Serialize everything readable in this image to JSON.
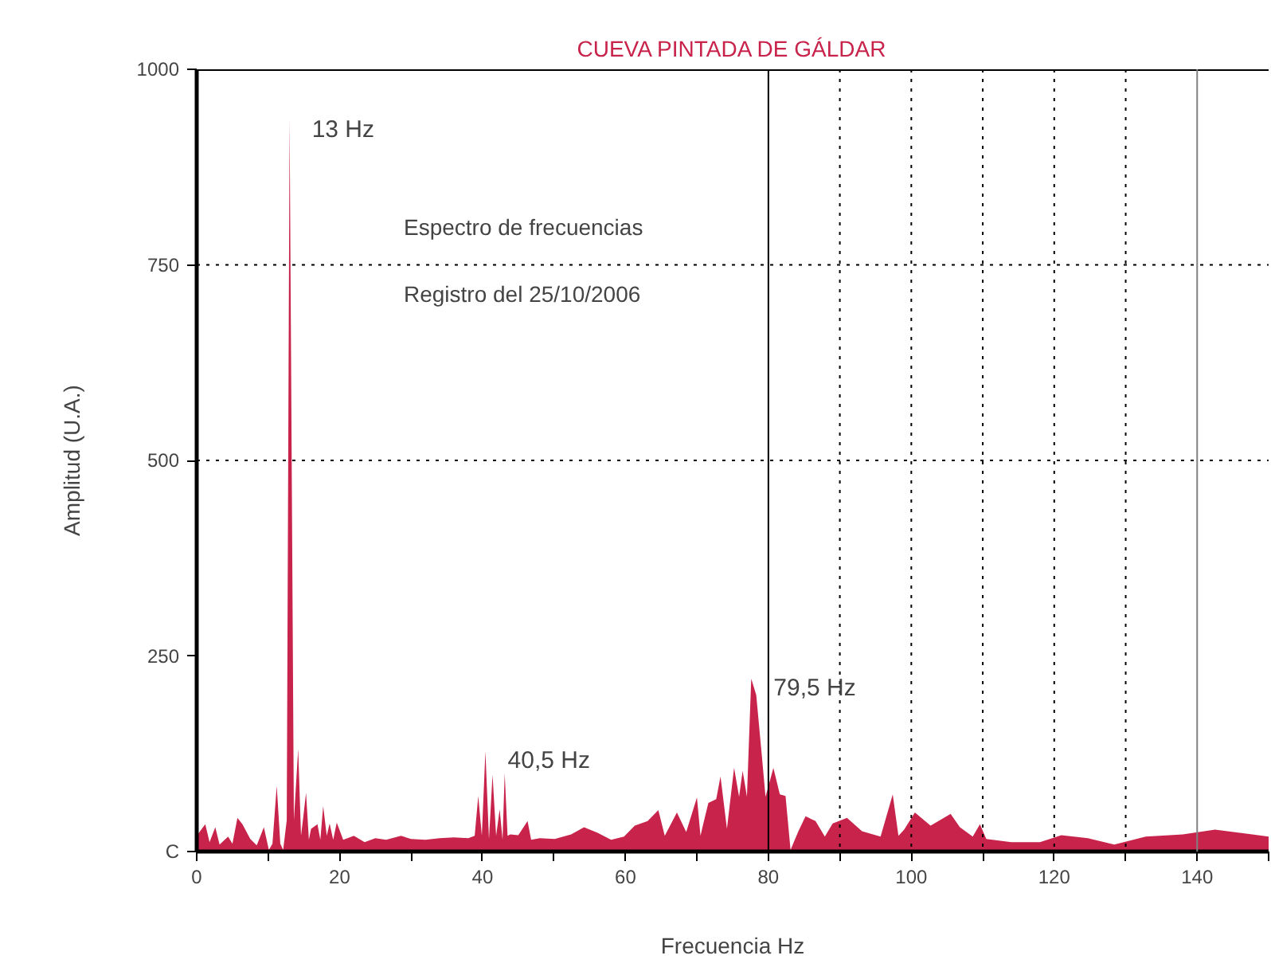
{
  "chart_data": {
    "type": "area",
    "title": "CUEVA PINTADA DE GÁLDAR",
    "xlabel": "Frecuencia Hz",
    "ylabel": "Amplitud (U.A.)",
    "x": [
      0,
      1.2,
      1.8,
      2.6,
      3.2,
      4.4,
      5.0,
      5.7,
      6.4,
      7.5,
      8.4,
      9.4,
      10.1,
      10.6,
      11.2,
      11.7,
      12.1,
      12.6,
      13,
      13.6,
      14.2,
      14.6,
      14.9,
      15.3,
      15.7,
      16,
      16.9,
      17.3,
      17.7,
      18.2,
      18.6,
      19.1,
      19.6,
      20.5,
      22,
      23.5,
      25,
      26.5,
      28.6,
      30,
      32,
      34,
      36,
      38,
      38.9,
      39.4,
      39.9,
      40.4,
      40.9,
      41.4,
      41.9,
      42.4,
      42.8,
      43.1,
      43.5,
      43.9,
      45,
      46.3,
      46.8,
      48,
      50.1,
      52.4,
      54.2,
      56.1,
      58,
      59.8,
      61.3,
      63.1,
      64.6,
      65.5,
      67.2,
      68.5,
      70,
      70.5,
      70.9,
      71.6,
      72.7,
      73.3,
      74.2,
      75.2,
      75.9,
      76.4,
      77,
      77.6,
      78.3,
      79.1,
      79.6,
      80.7,
      81.6,
      82.4,
      83.1,
      84.2,
      85.2,
      86.6,
      87.9,
      89,
      91,
      93.1,
      95.7,
      97.4,
      98.2,
      99,
      100.5,
      102.7,
      105.5,
      106.8,
      108.6,
      109.6,
      110.5,
      114,
      118,
      121,
      124.7,
      128.4,
      132.8,
      138,
      142.5,
      147.7,
      150
    ],
    "values": [
      20,
      35,
      12,
      31,
      9,
      19,
      10,
      43,
      35,
      16,
      8,
      31,
      2,
      10,
      84,
      10,
      2,
      40,
      935,
      40,
      131,
      20,
      43,
      75,
      15,
      29,
      35,
      15,
      58,
      20,
      36,
      15,
      37,
      15,
      20,
      12,
      17,
      15,
      20,
      16,
      15,
      17,
      18,
      17,
      20,
      71,
      20,
      128,
      16,
      98,
      20,
      54,
      15,
      100,
      20,
      22,
      21,
      39,
      15,
      17,
      16,
      22,
      31,
      24,
      15,
      19,
      33,
      39,
      53,
      20,
      50,
      25,
      69,
      20,
      36,
      62,
      67,
      96,
      29,
      107,
      70,
      103,
      70,
      221,
      200,
      121,
      70,
      107,
      73,
      71,
      2,
      26,
      45,
      39,
      19,
      36,
      43,
      26,
      19,
      73,
      20,
      28,
      50,
      33,
      48,
      31,
      19,
      35,
      16,
      12,
      12,
      21,
      17,
      9,
      19,
      22,
      28,
      22,
      19
    ],
    "color": "#c8234a",
    "xlim": [
      0,
      150
    ],
    "ylim": [
      0,
      1000
    ],
    "xticks": [
      0,
      {
        "value": 10,
        "label": null
      },
      20,
      {
        "value": 30,
        "label": null
      },
      40,
      {
        "value": 50,
        "label": null
      },
      60,
      {
        "value": 70,
        "label": null
      },
      80,
      {
        "value": 90,
        "label": null
      },
      100,
      {
        "value": 110,
        "label": null
      },
      120,
      {
        "value": 130,
        "label": null
      },
      140,
      {
        "value": 150,
        "label": null
      }
    ],
    "yticks": [
      {
        "value": 0,
        "label": "C"
      },
      250,
      500,
      750,
      1000
    ],
    "grid": false,
    "ref_lines": [
      {
        "axis": "x",
        "value": 80,
        "line_style": "solid",
        "color": "#000000"
      },
      {
        "axis": "x",
        "value": 90,
        "line_style": "dotted",
        "color": "#000000"
      },
      {
        "axis": "x",
        "value": 100,
        "line_style": "dotted",
        "color": "#000000"
      },
      {
        "axis": "x",
        "value": 110,
        "line_style": "dotted",
        "color": "#000000"
      },
      {
        "axis": "x",
        "value": 120,
        "line_style": "dotted",
        "color": "#000000"
      },
      {
        "axis": "x",
        "value": 130,
        "line_style": "dotted",
        "color": "#000000"
      },
      {
        "axis": "x",
        "value": 140,
        "line_style": "solid",
        "color": "#808080"
      },
      {
        "axis": "y",
        "value": 500,
        "line_style": "dotted",
        "color": "#000000"
      },
      {
        "axis": "y",
        "value": 750,
        "line_style": "dotted",
        "color": "#000000"
      }
    ],
    "annotations": [
      {
        "text": "13 Hz",
        "x": 13,
        "y": 935
      },
      {
        "text": "40,5 Hz",
        "x": 40.4,
        "y": 128
      },
      {
        "text": "79,5 Hz",
        "x": 77.6,
        "y": 221
      },
      "Espectro de frecuencias",
      "Registro del 25/10/2006"
    ]
  }
}
